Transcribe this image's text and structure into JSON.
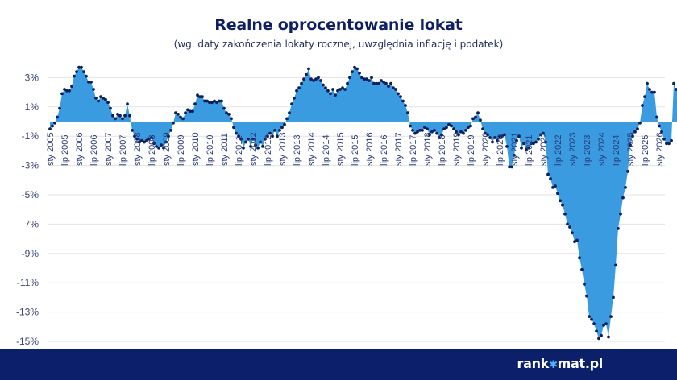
{
  "header": {
    "title": "Realne oprocentowanie lokat",
    "subtitle": "(wg. daty zakończenia lokaty rocznej, uwzględnia inflację i podatek)"
  },
  "footer": {
    "brand_left": "rank",
    "brand_right": "mat.pl",
    "brand_star": "✱"
  },
  "colors": {
    "area_fill": "#3a9be0",
    "marker": "#0c1f5c",
    "title": "#0e1f63",
    "footer_bg": "#0b1f6b",
    "gridline": "#e3e3e3"
  },
  "chart_data": {
    "type": "area",
    "title": "Realne oprocentowanie lokat",
    "subtitle": "(wg. daty zakończenia lokaty rocznej, uwzględnia inflację i podatek)",
    "xlabel": "",
    "ylabel": "",
    "ylim": [
      -15,
      3.8
    ],
    "yticks": [
      "3%",
      "1%",
      "-1%",
      "-3%",
      "-5%",
      "-7%",
      "-9%",
      "-11%",
      "-13%",
      "-15%"
    ],
    "ytick_values": [
      3,
      1,
      -1,
      -3,
      -5,
      -7,
      -9,
      -11,
      -13,
      -15
    ],
    "grid": true,
    "legend": null,
    "x_start": "sty 2005",
    "x_step": "1 month",
    "xtick_labels": [
      "sty 2005",
      "lip 2005",
      "sty 2006",
      "lip 2006",
      "sty 2007",
      "lip 2007",
      "sty 2008",
      "lip 2008",
      "sty 2009",
      "lip 2009",
      "sty 2010",
      "lip 2010",
      "sty 2011",
      "lip 2011",
      "sty 2012",
      "lip 2012",
      "sty 2013",
      "lip 2013",
      "sty 2014",
      "lip 2014",
      "sty 2015",
      "lip 2015",
      "sty 2016",
      "lip 2016",
      "sty 2017",
      "lip 2017",
      "sty 2018",
      "lip 2018",
      "sty 2019",
      "lip 2019",
      "sty 2020",
      "lip 2020",
      "sty 2021",
      "lip 2021",
      "sty 2022",
      "lip 2022",
      "sty 2023",
      "lip 2023",
      "sty 2024",
      "lip 2024",
      "sty 2025",
      "lip 2025",
      "sty 2026"
    ],
    "series": [
      {
        "name": "Realne oprocentowanie lokat (%)",
        "values": [
          -0.5,
          -0.3,
          -0.1,
          0.3,
          0.9,
          1.9,
          2.2,
          2.1,
          2.1,
          2.4,
          3.1,
          3.4,
          3.7,
          3.7,
          3.4,
          3.1,
          2.7,
          2.7,
          2.2,
          1.6,
          1.4,
          1.7,
          1.6,
          1.5,
          1.3,
          0.9,
          0.4,
          0.2,
          0.5,
          0.4,
          0.2,
          0.4,
          1.2,
          0.4,
          -0.6,
          -1.0,
          -1.2,
          -1.4,
          -1.3,
          -1.4,
          -1.3,
          -1.2,
          -1.1,
          -1.5,
          -1.7,
          -1.8,
          -1.6,
          -1.8,
          -1.4,
          -1.0,
          -0.6,
          -0.1,
          0.6,
          0.5,
          0.3,
          0.2,
          0.6,
          0.8,
          0.7,
          0.7,
          1.2,
          1.8,
          1.7,
          1.7,
          1.4,
          1.4,
          1.3,
          1.3,
          1.4,
          1.3,
          1.4,
          1.4,
          0.9,
          0.6,
          0.5,
          0.2,
          -0.4,
          -0.8,
          -1.0,
          -1.2,
          -1.8,
          -1.4,
          -1.2,
          -1.7,
          -1.2,
          -1.6,
          -1.8,
          -1.4,
          -1.7,
          -1.2,
          -1.0,
          -0.8,
          -1.0,
          -0.6,
          -1.0,
          -0.6,
          -0.4,
          -0.2,
          0.2,
          0.6,
          1.2,
          1.6,
          2.1,
          2.3,
          2.6,
          2.9,
          3.2,
          3.6,
          2.9,
          2.8,
          2.9,
          3.0,
          2.8,
          2.5,
          2.3,
          2.1,
          1.9,
          2.2,
          1.8,
          2.1,
          2.2,
          2.3,
          2.2,
          2.6,
          3.0,
          3.4,
          3.7,
          3.6,
          3.3,
          3.0,
          2.9,
          2.9,
          2.8,
          3.0,
          2.6,
          2.6,
          2.6,
          2.8,
          2.7,
          2.6,
          2.4,
          2.6,
          2.3,
          2.2,
          1.9,
          1.7,
          1.4,
          1.1,
          0.6,
          -0.3,
          -0.6,
          -0.8,
          -0.7,
          -0.6,
          -0.6,
          -0.4,
          -0.5,
          -0.9,
          -0.7,
          -0.6,
          -0.8,
          -1.1,
          -0.9,
          -0.5,
          -0.4,
          -0.2,
          -0.3,
          -0.5,
          -0.7,
          -0.9,
          -0.7,
          -0.8,
          -0.6,
          -0.4,
          -0.3,
          0.2,
          0.3,
          0.6,
          0.1,
          -0.5,
          -0.8,
          -0.9,
          -1.1,
          -1.4,
          -1.1,
          -1.3,
          -1.0,
          -1.0,
          -0.9,
          -1.7,
          -3.1,
          -3.1,
          -2.3,
          -1.3,
          -1.0,
          -1.8,
          -1.5,
          -1.9,
          -1.8,
          -1.5,
          -1.5,
          -1.4,
          -1.2,
          -0.9,
          -0.8,
          -1.4,
          -3.6,
          -3.9,
          -4.5,
          -4.4,
          -4.9,
          -5.4,
          -5.7,
          -6.3,
          -7.0,
          -7.2,
          -7.6,
          -8.2,
          -8.1,
          -9.3,
          -10.1,
          -11.1,
          -11.9,
          -13.3,
          -13.5,
          -13.8,
          -14.3,
          -14.8,
          -14.6,
          -13.9,
          -13.8,
          -14.7,
          -13.3,
          -12.0,
          -9.8,
          -7.3,
          -6.3,
          -5.2,
          -4.5,
          -3.4,
          -1.6,
          -1.0,
          -0.7,
          -0.5,
          -0.1,
          1.1,
          1.7,
          2.6,
          2.2,
          2.0,
          2.0,
          0.3,
          -0.3,
          -0.7,
          -1.2,
          -1.5,
          -1.5,
          -1.3,
          2.6,
          2.2,
          1.9,
          1.6,
          1.5,
          1.2,
          1.2,
          1.1,
          1.0,
          0.9,
          0.8,
          0.8
        ]
      }
    ]
  }
}
